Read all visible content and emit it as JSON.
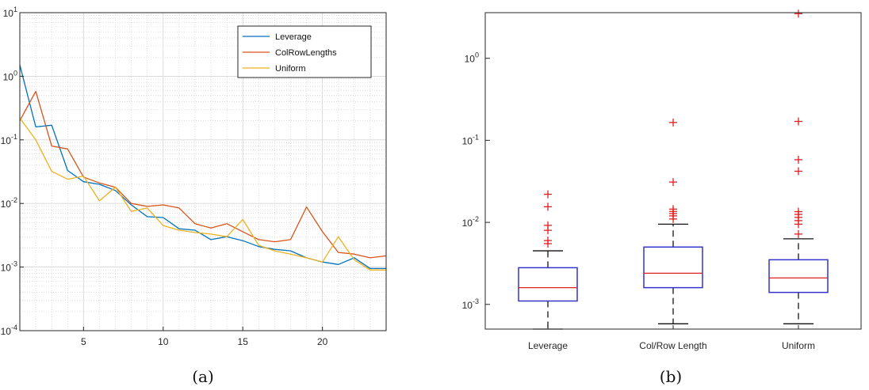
{
  "chart_data": [
    {
      "type": "line",
      "caption": "(a)",
      "yscale": "log",
      "xlim": [
        1,
        24
      ],
      "ylim": [
        0.0001,
        10
      ],
      "grid": true,
      "minor_grid": true,
      "legend_position": "top-right",
      "xticks": [
        5,
        10,
        15,
        20
      ],
      "xtick_labels": [
        "5",
        "10",
        "15",
        "20"
      ],
      "yticks": [
        0.0001,
        0.001,
        0.01,
        0.1,
        1,
        10
      ],
      "ytick_labels": [
        {
          "base": "10",
          "exp": "-4"
        },
        {
          "base": "10",
          "exp": "-3"
        },
        {
          "base": "10",
          "exp": "-2"
        },
        {
          "base": "10",
          "exp": "-1"
        },
        {
          "base": "10",
          "exp": "0"
        },
        {
          "base": "10",
          "exp": "1"
        }
      ],
      "x": [
        1,
        2,
        3,
        4,
        5,
        6,
        7,
        8,
        9,
        10,
        11,
        12,
        13,
        14,
        15,
        16,
        17,
        18,
        19,
        20,
        21,
        22,
        23,
        24
      ],
      "series": [
        {
          "name": "Leverage",
          "color": "#0072BD",
          "values": [
            1.5,
            0.16,
            0.17,
            0.033,
            0.022,
            0.02,
            0.016,
            0.0095,
            0.0062,
            0.006,
            0.004,
            0.0038,
            0.0027,
            0.003,
            0.0026,
            0.0021,
            0.0019,
            0.0018,
            0.0014,
            0.0012,
            0.0011,
            0.0014,
            0.00095,
            0.00095
          ]
        },
        {
          "name": "ColRowLengths",
          "color": "#D95319",
          "values": [
            0.2,
            0.58,
            0.08,
            0.072,
            0.026,
            0.021,
            0.018,
            0.01,
            0.009,
            0.0095,
            0.0085,
            0.0048,
            0.0041,
            0.0048,
            0.0036,
            0.0027,
            0.0025,
            0.0027,
            0.0088,
            0.0036,
            0.0017,
            0.0016,
            0.0014,
            0.0015
          ]
        },
        {
          "name": "Uniform",
          "color": "#EDB120",
          "values": [
            0.22,
            0.1,
            0.032,
            0.024,
            0.027,
            0.011,
            0.018,
            0.0075,
            0.0085,
            0.0045,
            0.0038,
            0.0035,
            0.0033,
            0.003,
            0.0056,
            0.0022,
            0.0018,
            0.0016,
            0.0014,
            0.0012,
            0.003,
            0.0013,
            0.0009,
            0.0009
          ]
        }
      ]
    },
    {
      "type": "box",
      "caption": "(b)",
      "yscale": "log",
      "ylim": [
        0.0005,
        3.6
      ],
      "grid": false,
      "yticks": [
        0.001,
        0.01,
        0.1,
        1
      ],
      "ytick_labels": [
        {
          "base": "10",
          "exp": "-3"
        },
        {
          "base": "10",
          "exp": "-2"
        },
        {
          "base": "10",
          "exp": "-1"
        },
        {
          "base": "10",
          "exp": "0"
        }
      ],
      "categories": [
        "Leverage",
        "Col/Row Length",
        "Uniform"
      ],
      "box_color": "#3333CC",
      "median_color": "#E02020",
      "whisker_color": "#333333",
      "outlier_color": "#E02020",
      "boxes": [
        {
          "q1": 0.0011,
          "median": 0.0016,
          "q3": 0.0028,
          "whisker_low": 0.0005,
          "whisker_high": 0.0045,
          "outliers": [
            0.0055,
            0.006,
            0.008,
            0.0092,
            0.0155,
            0.022
          ]
        },
        {
          "q1": 0.0016,
          "median": 0.0024,
          "q3": 0.005,
          "whisker_low": 0.00058,
          "whisker_high": 0.0095,
          "outliers": [
            0.011,
            0.012,
            0.0128,
            0.0136,
            0.0145,
            0.031,
            0.165
          ]
        },
        {
          "q1": 0.0014,
          "median": 0.0021,
          "q3": 0.0035,
          "whisker_low": 0.00058,
          "whisker_high": 0.0063,
          "outliers": [
            0.0072,
            0.0095,
            0.0105,
            0.0115,
            0.0125,
            0.0135,
            0.042,
            0.058,
            0.17,
            3.5
          ]
        }
      ]
    }
  ]
}
